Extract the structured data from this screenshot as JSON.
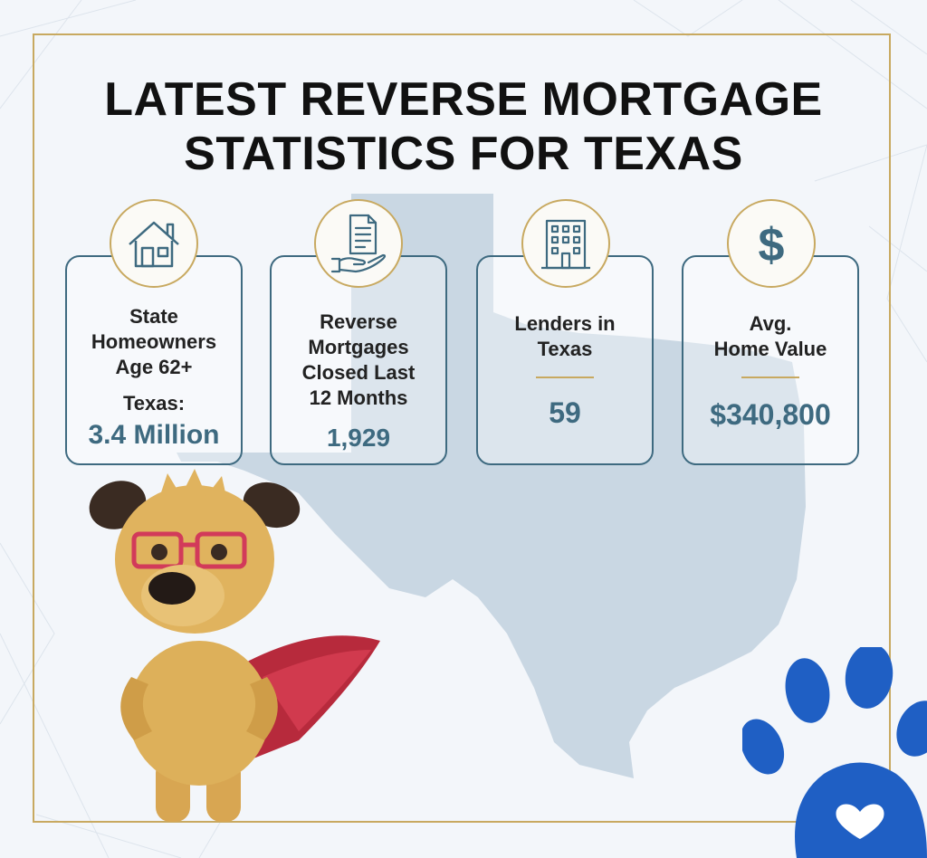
{
  "title": {
    "line1": "LATEST REVERSE MORTGAGE",
    "line2": "STATISTICS FOR TEXAS"
  },
  "colors": {
    "accent_gold": "#c8a960",
    "teal": "#3e6a80",
    "paw_blue": "#1f5fc4",
    "map": "#c9d7e3"
  },
  "cards": [
    {
      "icon": "house-icon",
      "label_lines": [
        "State",
        "Homeowners",
        "Age 62+"
      ],
      "sublabel": "Texas:",
      "value": "3.4 Million"
    },
    {
      "icon": "document-hand-icon",
      "label_lines": [
        "Reverse",
        "Mortgages",
        "Closed Last",
        "12 Months"
      ],
      "value": "1,929"
    },
    {
      "icon": "building-icon",
      "label_lines": [
        "Lenders in",
        "Texas"
      ],
      "value": "59"
    },
    {
      "icon": "dollar-icon",
      "label_lines": [
        "Avg.",
        "Home Value"
      ],
      "value": "$340,800"
    }
  ]
}
